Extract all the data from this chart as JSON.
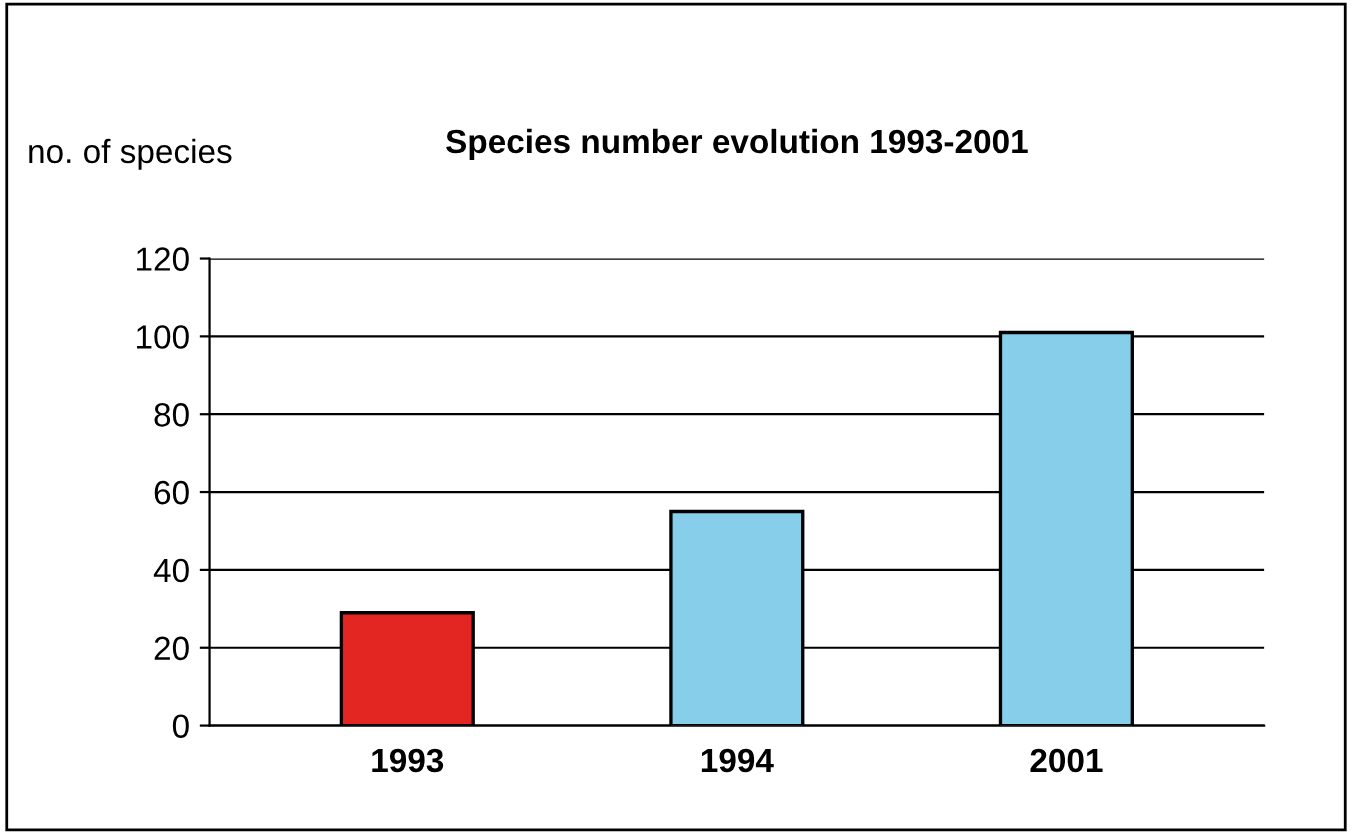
{
  "chart_data": {
    "type": "bar",
    "title": "Species number evolution 1993-2001",
    "ylabel": "no. of species",
    "categories": [
      "1993",
      "1994",
      "2001"
    ],
    "values": [
      29,
      55,
      101
    ],
    "colors": [
      "#e32622",
      "#87ceeb",
      "#87ceeb"
    ],
    "ylim": [
      0,
      120
    ],
    "yticks": [
      0,
      20,
      40,
      60,
      80,
      100,
      120
    ],
    "grid": "y"
  }
}
